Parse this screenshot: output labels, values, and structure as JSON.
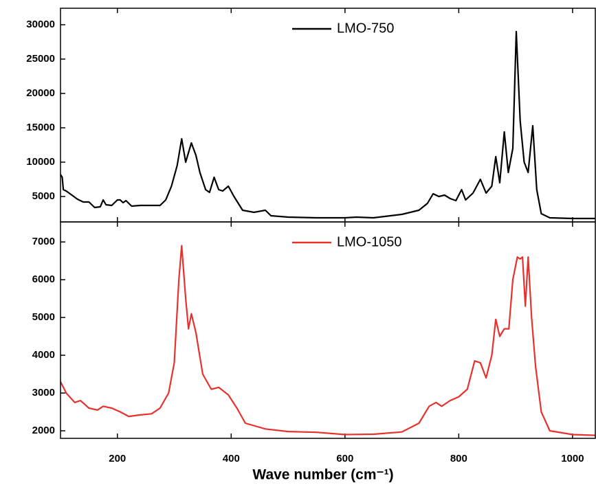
{
  "chart_data": [
    {
      "type": "line",
      "x": [
        100,
        103,
        105,
        110,
        120,
        130,
        140,
        150,
        160,
        170,
        175,
        180,
        190,
        200,
        205,
        210,
        215,
        225,
        240,
        260,
        275,
        285,
        295,
        305,
        313,
        320,
        330,
        338,
        345,
        355,
        362,
        370,
        378,
        385,
        395,
        405,
        420,
        440,
        460,
        470,
        500,
        550,
        600,
        620,
        650,
        700,
        730,
        745,
        755,
        765,
        775,
        785,
        795,
        805,
        812,
        825,
        838,
        848,
        858,
        865,
        872,
        880,
        887,
        895,
        901,
        908,
        915,
        922,
        930,
        937,
        945,
        960,
        1000,
        1040
      ],
      "series": [
        {
          "name": "LMO-750",
          "color": "#000000",
          "values": [
            8200,
            7800,
            6000,
            5800,
            5200,
            4600,
            4200,
            4200,
            3400,
            3500,
            4500,
            3800,
            3700,
            4500,
            4500,
            4100,
            4400,
            3600,
            3700,
            3700,
            3700,
            4500,
            6500,
            9500,
            13400,
            10000,
            12800,
            11000,
            8500,
            6000,
            5600,
            7800,
            6000,
            5800,
            6500,
            5000,
            3000,
            2700,
            3000,
            2200,
            2000,
            1900,
            1900,
            2000,
            1900,
            2400,
            3000,
            4000,
            5400,
            5000,
            5200,
            4700,
            4400,
            6000,
            4500,
            5500,
            7500,
            5500,
            6500,
            10800,
            7000,
            14400,
            8500,
            12000,
            29000,
            16000,
            10000,
            8500,
            15300,
            6000,
            2500,
            1900,
            1800,
            1800
          ]
        }
      ],
      "xlim": [
        100,
        1040
      ],
      "ylim": [
        1300,
        32400
      ],
      "yticks": [
        5000,
        10000,
        15000,
        20000,
        25000,
        30000
      ]
    },
    {
      "type": "line",
      "x": [
        100,
        110,
        125,
        135,
        150,
        165,
        175,
        190,
        205,
        220,
        240,
        260,
        275,
        290,
        300,
        308,
        313,
        320,
        325,
        330,
        338,
        350,
        365,
        378,
        395,
        410,
        425,
        460,
        500,
        550,
        600,
        650,
        700,
        730,
        748,
        760,
        770,
        785,
        800,
        815,
        828,
        838,
        848,
        858,
        865,
        872,
        880,
        888,
        895,
        903,
        908,
        912,
        917,
        922,
        928,
        935,
        945,
        960,
        1000,
        1040
      ],
      "series": [
        {
          "name": "LMO-1050",
          "color": "#e8302c",
          "values": [
            3300,
            3000,
            2750,
            2800,
            2600,
            2550,
            2650,
            2600,
            2500,
            2380,
            2420,
            2450,
            2600,
            3000,
            3800,
            6000,
            6900,
            5500,
            4700,
            5100,
            4600,
            3500,
            3100,
            3150,
            2950,
            2600,
            2200,
            2050,
            1980,
            1960,
            1900,
            1910,
            1970,
            2200,
            2650,
            2750,
            2650,
            2800,
            2900,
            3100,
            3850,
            3800,
            3400,
            4000,
            4950,
            4500,
            4700,
            4700,
            6000,
            6600,
            6550,
            6600,
            5300,
            6600,
            5000,
            3700,
            2500,
            2000,
            1900,
            1880
          ]
        }
      ],
      "xlim": [
        100,
        1040
      ],
      "xticks": [
        200,
        400,
        600,
        800,
        1000
      ],
      "xlabel": "Wave number (cm⁻¹)",
      "ylim": [
        1800,
        7530
      ],
      "yticks": [
        2000,
        3000,
        4000,
        5000,
        6000,
        7000
      ]
    }
  ]
}
